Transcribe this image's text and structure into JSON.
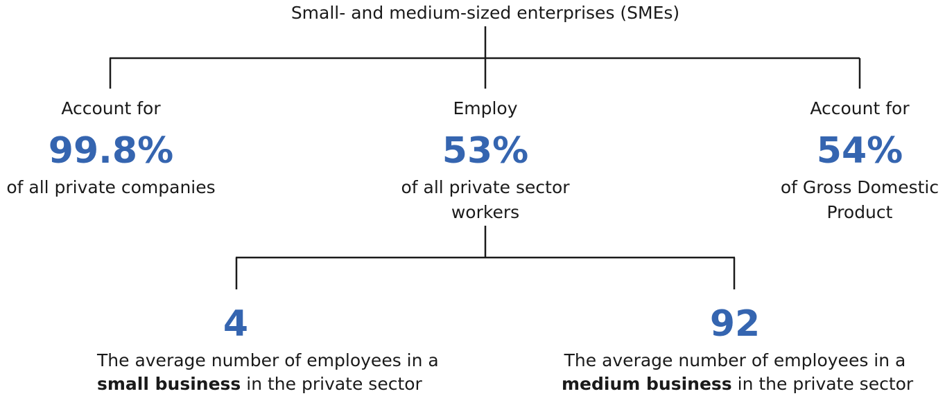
{
  "root": {
    "label": "Small- and medium-sized enterprises (SMEs)"
  },
  "stats": [
    {
      "intro": "Account for",
      "value": "99.8%",
      "desc": "of all private companies"
    },
    {
      "intro": "Employ",
      "value": "53%",
      "desc_line1": "of all private sector",
      "desc_line2": "workers"
    },
    {
      "intro": "Account for",
      "value": "54%",
      "desc_line1": "of Gross Domestic",
      "desc_line2": "Product"
    }
  ],
  "businesses": [
    {
      "value": "4",
      "desc_line1": "The average number of employees in a",
      "bold": "small business",
      "rest": " in the private sector"
    },
    {
      "value": "92",
      "desc_line1": "The average number of employees in a",
      "bold": "medium business",
      "rest": " in the private sector"
    }
  ],
  "colors": {
    "accent": "#3565b0",
    "text": "#1a1a1a"
  }
}
